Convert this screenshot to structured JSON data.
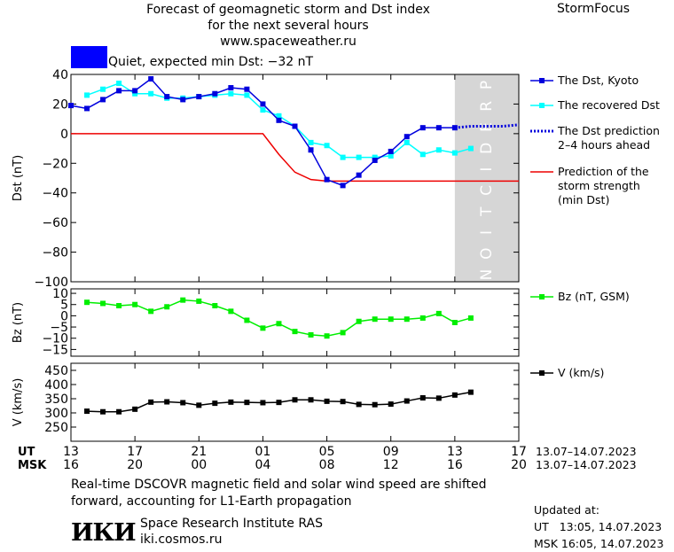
{
  "header": {
    "title_line1": "Forecast of geomagnetic storm and Dst index",
    "title_line2": "for the next several hours",
    "url": "www.spaceweather.ru",
    "brand": "StormFocus"
  },
  "status": {
    "text": "Quiet, expected min Dst: −32 nT",
    "color": "#0000ff"
  },
  "prediction_label": "PREDICTION",
  "colors": {
    "dst_kyoto": "#0000dd",
    "dst_recovered": "#00ffff",
    "dst_prediction": "#0000dd",
    "min_dst": "#ee0000",
    "bz": "#00ee00",
    "v": "#000000",
    "prediction_zone": "#d6d6d6"
  },
  "chart_data": [
    {
      "type": "line",
      "ylabel": "Dst (nT)",
      "ylim": [
        -100,
        40
      ],
      "yticks": [
        40,
        20,
        0,
        -20,
        -40,
        -60,
        -80,
        -100
      ],
      "x_unit": "hours since 13:00 UT 13.07.2023",
      "xlim": [
        0,
        28
      ],
      "prediction_start": 24,
      "legend_placement": "right",
      "series": [
        {
          "name": "The Dst, Kyoto",
          "x": [
            0,
            1,
            2,
            3,
            4,
            5,
            6,
            7,
            8,
            9,
            10,
            11,
            12,
            13,
            14,
            15,
            16,
            17,
            18,
            19,
            20,
            21,
            22,
            23,
            24
          ],
          "values": [
            19,
            17,
            23,
            29,
            29,
            37,
            25,
            23,
            25,
            27,
            31,
            30,
            20,
            9,
            5,
            -11,
            -31,
            -35,
            -28,
            -18,
            -12,
            -2,
            4,
            4,
            4
          ]
        },
        {
          "name": "The recovered Dst",
          "x": [
            1,
            2,
            3,
            4,
            5,
            6,
            7,
            8,
            9,
            10,
            11,
            12,
            13,
            14,
            15,
            16,
            17,
            18,
            19,
            20,
            21,
            22,
            23,
            24,
            25
          ],
          "values": [
            26,
            30,
            34,
            27,
            27,
            24,
            24,
            25,
            26,
            27,
            26,
            16,
            12,
            5,
            -6,
            -8,
            -16,
            -16,
            -16,
            -15,
            -6,
            -14,
            -11,
            -13,
            -10
          ]
        },
        {
          "name": "The Dst prediction 2–4 hours ahead",
          "x": [
            24,
            25,
            26,
            27,
            28
          ],
          "values": [
            4,
            5,
            5,
            5,
            6
          ]
        },
        {
          "name": "Prediction of the storm strength (min Dst)",
          "x": [
            0,
            12,
            13,
            14,
            15,
            16,
            17,
            24,
            28
          ],
          "values": [
            0,
            0,
            -14,
            -26,
            -31,
            -32,
            -32,
            -32,
            -32
          ]
        }
      ],
      "legend": [
        {
          "label": "The Dst, Kyoto"
        },
        {
          "label": "The recovered Dst"
        },
        {
          "label": "The Dst prediction",
          "label2": "2–4 hours ahead"
        },
        {
          "label": "Prediction of the",
          "label2": "storm strength",
          "label3": "(min Dst)"
        }
      ]
    },
    {
      "type": "line",
      "ylabel": "Bz (nT)",
      "ylim": [
        -18,
        12
      ],
      "yticks": [
        10,
        5,
        0,
        -5,
        -10,
        -15
      ],
      "series": [
        {
          "name": "Bz (nT, GSM)",
          "x": [
            1,
            2,
            3,
            4,
            5,
            6,
            7,
            8,
            9,
            10,
            11,
            12,
            13,
            14,
            15,
            16,
            17,
            18,
            19,
            20,
            21,
            22,
            23,
            24,
            25
          ],
          "values": [
            6,
            5.5,
            4.5,
            5,
            2,
            4,
            7,
            6.5,
            4.5,
            2,
            -2,
            -5.5,
            -3.5,
            -7,
            -8.5,
            -9,
            -7.5,
            -2.5,
            -1.5,
            -1.5,
            -1.5,
            -1,
            1,
            -3,
            -1
          ]
        }
      ],
      "legend": [
        {
          "label": "Bz (nT, GSM)"
        }
      ]
    },
    {
      "type": "line",
      "ylabel": "V (km/s)",
      "ylim": [
        200,
        475
      ],
      "yticks": [
        450,
        400,
        350,
        300,
        250
      ],
      "series": [
        {
          "name": "V (km/s)",
          "x": [
            1,
            2,
            3,
            4,
            5,
            6,
            7,
            8,
            9,
            10,
            11,
            12,
            13,
            14,
            15,
            16,
            17,
            18,
            19,
            20,
            21,
            22,
            23,
            24,
            25
          ],
          "values": [
            306,
            304,
            304,
            313,
            338,
            339,
            336,
            327,
            334,
            338,
            337,
            336,
            337,
            346,
            346,
            341,
            340,
            330,
            329,
            331,
            342,
            353,
            352,
            363,
            373
          ]
        }
      ],
      "legend": [
        {
          "label": "V (km/s)"
        }
      ]
    }
  ],
  "x_axis": {
    "ut_label": "UT",
    "msk_label": "MSK",
    "ticks": [
      0,
      4,
      8,
      12,
      16,
      20,
      24,
      28
    ],
    "ut_ticks": [
      "13",
      "17",
      "21",
      "01",
      "05",
      "09",
      "13",
      "17"
    ],
    "msk_ticks": [
      "16",
      "20",
      "00",
      "04",
      "08",
      "12",
      "16",
      "20"
    ],
    "ut_range": "13.07–14.07.2023",
    "msk_range": "13.07–14.07.2023"
  },
  "footer": {
    "note_line1": "Real-time DSCOVR magnetic field and solar wind speed are shifted",
    "note_line2": "forward, accounting for L1-Earth propagation",
    "logo": "ИКИ",
    "org_name": "Space Research Institute RAS",
    "org_url": "iki.cosmos.ru",
    "updated_label": "Updated at:",
    "updated_ut": "UT   13:05, 14.07.2023",
    "updated_msk": "MSK 16:05, 14.07.2023"
  }
}
